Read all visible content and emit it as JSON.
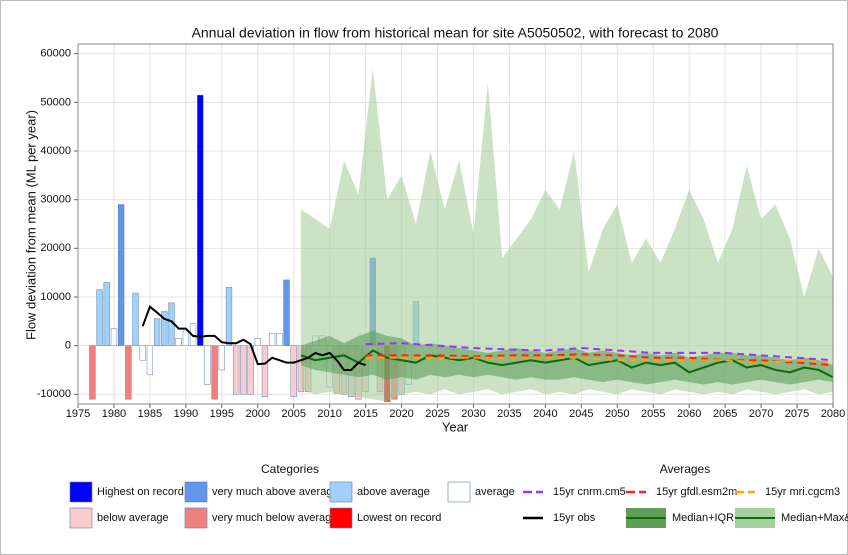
{
  "chart_data": {
    "type": "combo",
    "title": "Annual deviation in flow from historical mean for site A5050502, with forecast to 2080",
    "x_label": "Year",
    "y_label": "Flow deviation from mean (ML per year)",
    "xlim": [
      1975,
      2080
    ],
    "xticks": [
      1975,
      1980,
      1985,
      1990,
      1995,
      2000,
      2005,
      2010,
      2015,
      2020,
      2025,
      2030,
      2035,
      2040,
      2045,
      2050,
      2055,
      2060,
      2065,
      2070,
      2075,
      2080
    ],
    "ylim": [
      -12000,
      62000
    ],
    "yticks": [
      -10000,
      0,
      10000,
      20000,
      30000,
      40000,
      50000,
      60000
    ],
    "grid": true,
    "categories_title": "Categories",
    "categories": [
      {
        "name": "Highest on record",
        "color": "#0000ff"
      },
      {
        "name": "very much above average",
        "color": "#6495ed"
      },
      {
        "name": "above average",
        "color": "#a3d0fa"
      },
      {
        "name": "average",
        "color": "#ffffff"
      },
      {
        "name": "below average",
        "color": "#f9cdd0"
      },
      {
        "name": "very much below average",
        "color": "#f08080"
      },
      {
        "name": "Lowest on record",
        "color": "#ff0000"
      }
    ],
    "bars": {
      "years": [
        1977,
        1978,
        1979,
        1980,
        1981,
        1982,
        1983,
        1984,
        1985,
        1986,
        1987,
        1988,
        1989,
        1990,
        1991,
        1992,
        1993,
        1994,
        1995,
        1996,
        1997,
        1998,
        1999,
        2000,
        2001,
        2002,
        2003,
        2004,
        2005,
        2006,
        2007,
        2008,
        2009,
        2010,
        2011,
        2012,
        2013,
        2014,
        2015,
        2016,
        2017,
        2018,
        2019,
        2020,
        2021,
        2022
      ],
      "values": [
        -11000,
        11500,
        13000,
        3500,
        29000,
        -11000,
        10800,
        -3000,
        -6000,
        5500,
        7000,
        8800,
        1500,
        3000,
        4500,
        51500,
        -8000,
        -11000,
        -5000,
        12000,
        -10000,
        -10000,
        -10000,
        1500,
        -10500,
        2500,
        2500,
        13500,
        -10500,
        -9500,
        -9500,
        2000,
        2000,
        -8500,
        -9800,
        -10000,
        -10500,
        -11000,
        -9500,
        18000,
        -9500,
        -11500,
        -11000,
        -10000,
        -8000,
        9000
      ],
      "category": [
        "very much below average",
        "above average",
        "above average",
        "average",
        "very much above average",
        "very much below average",
        "above average",
        "average",
        "average",
        "above average",
        "above average",
        "above average",
        "average",
        "average",
        "average",
        "Highest on record",
        "average",
        "very much below average",
        "average",
        "above average",
        "below average",
        "below average",
        "below average",
        "average",
        "below average",
        "average",
        "average",
        "very much above average",
        "below average",
        "below average",
        "below average",
        "average",
        "average",
        "average",
        "below average",
        "below average",
        "below average",
        "below average",
        "below average",
        "very much above average",
        "below average",
        "Lowest on record",
        "very much below average",
        "below average",
        "average",
        "above average"
      ]
    },
    "averages_title": "Averages",
    "averages": [
      {
        "name": "15yr cnrm.cm5",
        "color": "#9933ff",
        "x": [
          2015,
          2020,
          2025,
          2030,
          2035,
          2040,
          2045,
          2050,
          2055,
          2060,
          2065,
          2070,
          2075,
          2080
        ],
        "values": [
          300,
          500,
          0,
          -500,
          -800,
          -1000,
          -500,
          -1000,
          -1500,
          -1500,
          -1500,
          -2000,
          -2500,
          -3000
        ]
      },
      {
        "name": "15yr gfdl.esm2m",
        "color": "#ff2020",
        "x": [
          2015,
          2020,
          2025,
          2030,
          2035,
          2040,
          2045,
          2050,
          2055,
          2060,
          2065,
          2070,
          2075,
          2080
        ],
        "values": [
          -2000,
          -2000,
          -2000,
          -2200,
          -2000,
          -2000,
          -1800,
          -2000,
          -2500,
          -2500,
          -3000,
          -3000,
          -3500,
          -4000
        ]
      },
      {
        "name": "15yr mri.cgcm3",
        "color": "#ffa500",
        "x": [
          2015,
          2020,
          2025,
          2030,
          2035,
          2040,
          2045,
          2050,
          2055,
          2060,
          2065,
          2070,
          2075,
          2080
        ],
        "values": [
          -2500,
          -2500,
          -2500,
          -2500,
          -2500,
          -2500,
          -2500,
          -3000,
          -3000,
          -3000,
          -3000,
          -3500,
          -3000,
          -3500
        ]
      },
      {
        "name": "15yr obs",
        "color": "#000000",
        "x": [
          1984,
          1985,
          1986,
          1987,
          1988,
          1989,
          1990,
          1991,
          1992,
          1993,
          1994,
          1995,
          1996,
          1997,
          1998,
          1999,
          2000,
          2001,
          2002,
          2003,
          2004,
          2005,
          2006,
          2007,
          2008,
          2009,
          2010,
          2011,
          2012,
          2013,
          2014,
          2015
        ],
        "values": [
          4000,
          8000,
          6800,
          5500,
          5000,
          3500,
          3500,
          2000,
          1800,
          2000,
          2000,
          700,
          500,
          500,
          1200,
          300,
          -3800,
          -3700,
          -2500,
          -3000,
          -3500,
          -3500,
          -3000,
          -2500,
          -1500,
          -2000,
          -1500,
          -3000,
          -5000,
          -5000,
          -3500,
          -4000
        ]
      }
    ],
    "forecast": {
      "x": [
        2006,
        2008,
        2010,
        2012,
        2014,
        2016,
        2018,
        2020,
        2022,
        2024,
        2026,
        2028,
        2030,
        2032,
        2034,
        2036,
        2038,
        2040,
        2042,
        2044,
        2046,
        2048,
        2050,
        2052,
        2054,
        2056,
        2058,
        2060,
        2062,
        2064,
        2066,
        2068,
        2070,
        2072,
        2074,
        2076,
        2078,
        2080
      ],
      "median_color": "#0b6b0b",
      "median": [
        -2000,
        -3000,
        -2500,
        -2000,
        -3500,
        -1000,
        -2500,
        -3000,
        -3500,
        -2000,
        -2500,
        -3000,
        -2500,
        -3500,
        -4000,
        -3500,
        -3000,
        -3500,
        -3000,
        -2500,
        -4000,
        -3500,
        -3000,
        -4500,
        -3500,
        -4000,
        -3500,
        -5500,
        -4500,
        -3500,
        -3000,
        -4500,
        -4000,
        -5000,
        -5500,
        -4500,
        -5000,
        -6500
      ],
      "iqr": {
        "name": "Median+IQR",
        "color": "#5d9e58",
        "upper": [
          0,
          1000,
          2000,
          500,
          2000,
          3000,
          2000,
          1500,
          0,
          500,
          0,
          -500,
          -1000,
          -1500,
          -1000,
          -500,
          -1000,
          -1500,
          -1000,
          -500,
          -1500,
          -1000,
          -1500,
          -2000,
          -1500,
          -2000,
          -1500,
          -2500,
          -2000,
          -1500,
          -1500,
          -2000,
          -2000,
          -2500,
          -3000,
          -2500,
          -3000,
          -4000
        ],
        "lower": [
          -4000,
          -5000,
          -5500,
          -6000,
          -6500,
          -6000,
          -7000,
          -6500,
          -7000,
          -6000,
          -6500,
          -6000,
          -6500,
          -6000,
          -6500,
          -7000,
          -6500,
          -7000,
          -7000,
          -6500,
          -7000,
          -7500,
          -7000,
          -7500,
          -8000,
          -7500,
          -7000,
          -7500,
          -8000,
          -7500,
          -8000,
          -7500,
          -7000,
          -7500,
          -8000,
          -7500,
          -7000,
          -7500
        ]
      },
      "range": {
        "name": "Median+Max&Min",
        "color": "#a8cf9f",
        "upper": [
          28000,
          26000,
          24000,
          38000,
          31000,
          57000,
          30000,
          35000,
          25000,
          40000,
          28000,
          38000,
          23000,
          54000,
          18000,
          22000,
          26000,
          32000,
          28000,
          40000,
          15000,
          24000,
          29000,
          17000,
          22000,
          17000,
          24000,
          32000,
          26000,
          17000,
          24000,
          37000,
          26000,
          29000,
          22000,
          10000,
          20000,
          14000
        ],
        "lower": [
          -9000,
          -10000,
          -9500,
          -10000,
          -10500,
          -11000,
          -11500,
          -10000,
          -9500,
          -10000,
          -9000,
          -10000,
          -9500,
          -9000,
          -10000,
          -9500,
          -9000,
          -10000,
          -9500,
          -10000,
          -9000,
          -9500,
          -10000,
          -9000,
          -9500,
          -10000,
          -9000,
          -9500,
          -10000,
          -9500,
          -10000,
          -9000,
          -9500,
          -10000,
          -9500,
          -9000,
          -10000,
          -9500
        ]
      }
    }
  }
}
